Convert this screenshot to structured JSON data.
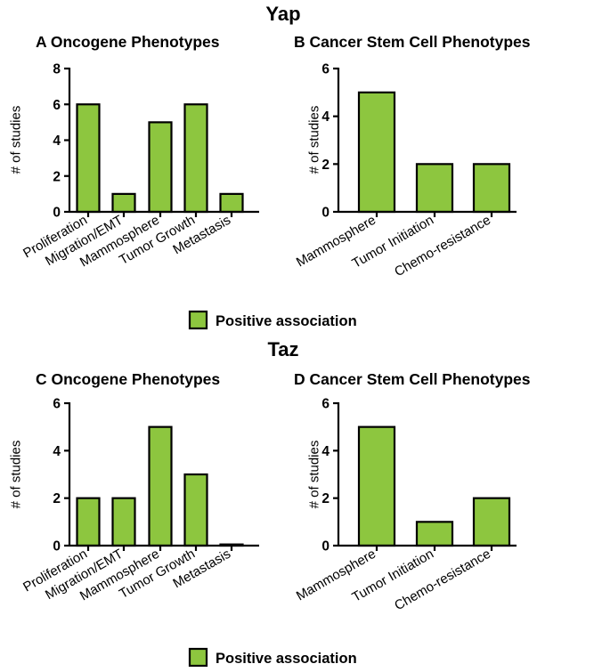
{
  "sections": [
    {
      "title": "Yap",
      "legend_label": "Positive association"
    },
    {
      "title": "Taz",
      "legend_label": "Positive association"
    }
  ],
  "colors": {
    "bar": "#8dc63f",
    "stroke": "#000000"
  },
  "chart_data": [
    {
      "type": "bar",
      "panel": "A",
      "title": "A Oncogene Phenotypes",
      "ylabel": "# of studies",
      "categories": [
        "Proliferation",
        "Migration/EMT",
        "Mammosphere",
        "Tumor Growth",
        "Metastasis"
      ],
      "values": [
        6,
        1,
        5,
        6,
        1
      ],
      "ylim": [
        0,
        8
      ],
      "yticks": [
        0,
        2,
        4,
        6,
        8
      ],
      "series": [
        {
          "name": "Positive association",
          "values": [
            6,
            1,
            5,
            6,
            1
          ]
        }
      ]
    },
    {
      "type": "bar",
      "panel": "B",
      "title": "B Cancer Stem Cell Phenotypes",
      "ylabel": "# of studies",
      "categories": [
        "Mammosphere",
        "Tumor Initiation",
        "Chemo-resistance"
      ],
      "values": [
        5,
        2,
        2
      ],
      "ylim": [
        0,
        6
      ],
      "yticks": [
        0,
        2,
        4,
        6
      ],
      "series": [
        {
          "name": "Positive association",
          "values": [
            5,
            2,
            2
          ]
        }
      ]
    },
    {
      "type": "bar",
      "panel": "C",
      "title": "C Oncogene Phenotypes",
      "ylabel": "# of studies",
      "categories": [
        "Proliferation",
        "Migration/EMT",
        "Mammosphere",
        "Tumor Growth",
        "Metastasis"
      ],
      "values": [
        2,
        2,
        5,
        3,
        0.05
      ],
      "ylim": [
        0,
        6
      ],
      "yticks": [
        0,
        2,
        4,
        6
      ],
      "series": [
        {
          "name": "Positive association",
          "values": [
            2,
            2,
            5,
            3,
            0.05
          ]
        }
      ]
    },
    {
      "type": "bar",
      "panel": "D",
      "title": "D Cancer Stem Cell Phenotypes",
      "ylabel": "# of studies",
      "categories": [
        "Mammosphere",
        "Tumor Initiation",
        "Chemo-resistance"
      ],
      "values": [
        5,
        1,
        2
      ],
      "ylim": [
        0,
        6
      ],
      "yticks": [
        0,
        2,
        4,
        6
      ],
      "series": [
        {
          "name": "Positive association",
          "values": [
            5,
            1,
            2
          ]
        }
      ]
    }
  ]
}
